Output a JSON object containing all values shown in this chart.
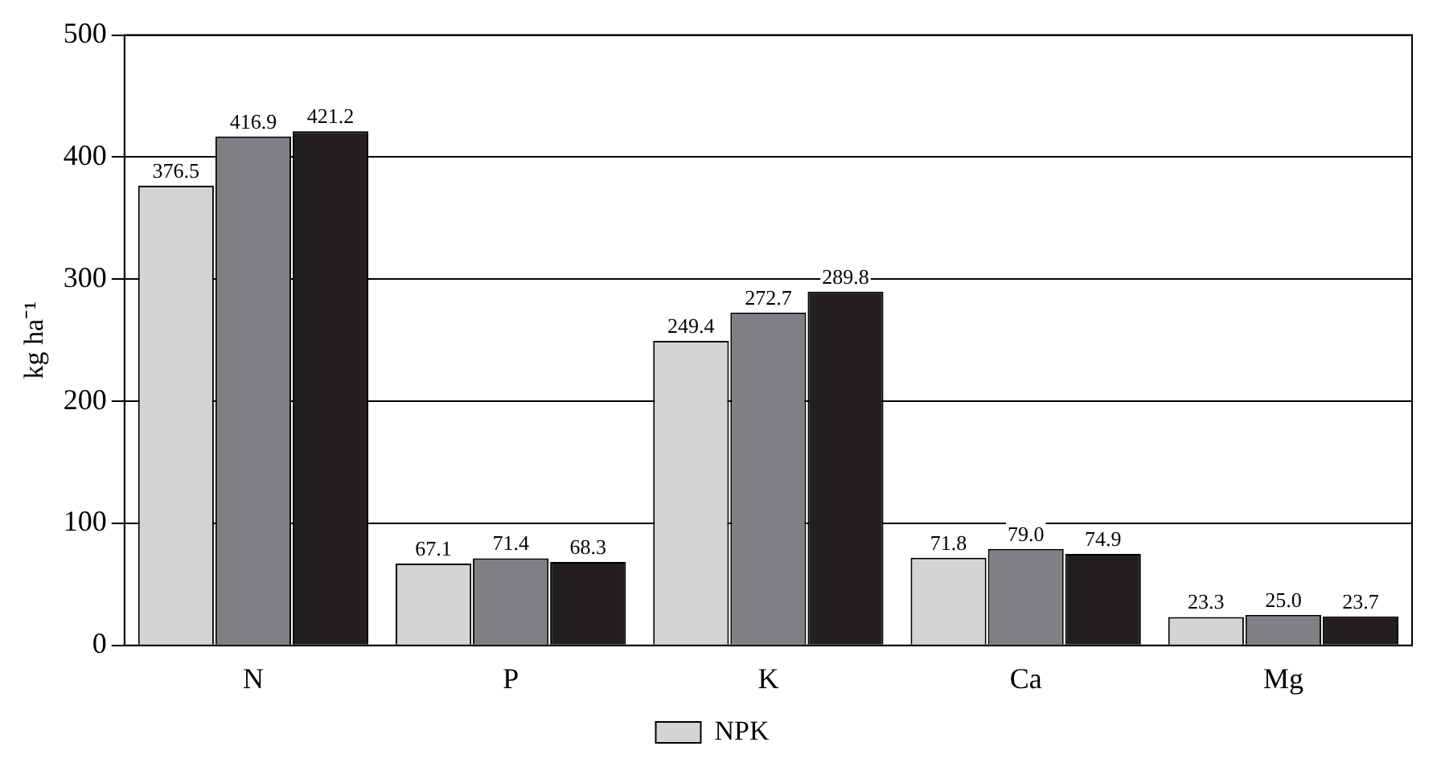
{
  "chart_data": {
    "type": "bar",
    "ylabel": "kg ha⁻¹",
    "categories": [
      "N",
      "P",
      "K",
      "Ca",
      "Mg"
    ],
    "series": [
      {
        "name": "NPK",
        "color": "#d3d4d6",
        "values": [
          376.5,
          67.1,
          249.4,
          71.8,
          23.3
        ]
      },
      {
        "color": "#7f8083",
        "values": [
          416.9,
          71.4,
          272.7,
          79.0,
          25.0
        ],
        "value_labels": [
          "416.9",
          "71.4",
          "272.7",
          "79.0",
          "25.0"
        ]
      },
      {
        "color": "#231f20",
        "values": [
          421.2,
          68.3,
          289.8,
          74.9,
          23.7
        ]
      }
    ],
    "ylim": [
      0,
      500
    ],
    "yticks": [
      0,
      100,
      200,
      300,
      400,
      500
    ],
    "grid": "y",
    "legend": "bottom",
    "data_labels": true
  }
}
